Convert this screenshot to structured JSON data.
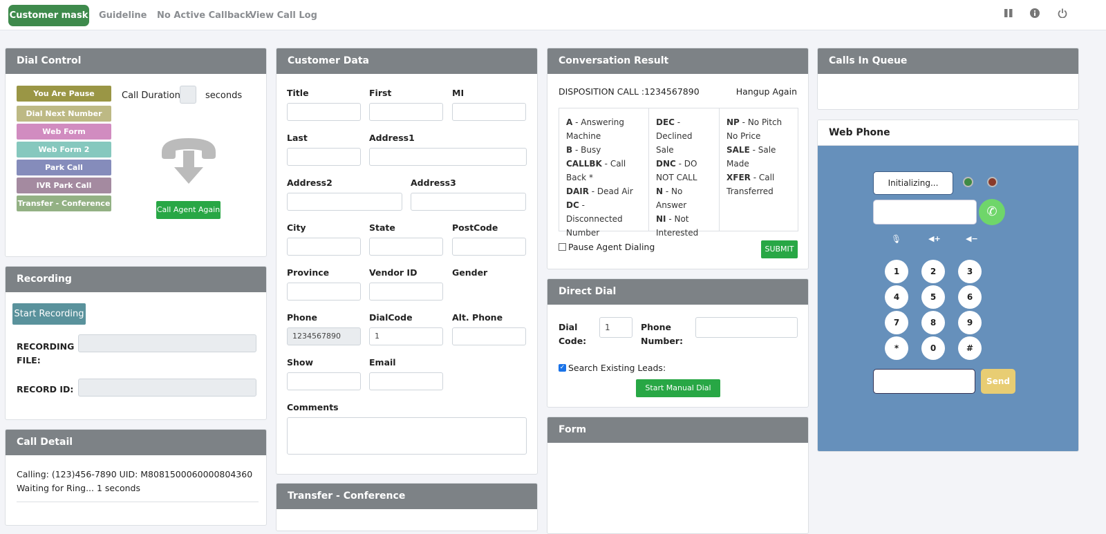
{
  "nav": {
    "items": [
      "Customer mask",
      "Guideline",
      "No Active Callback",
      "View Call Log"
    ],
    "icons": [
      "pause-icon",
      "info-icon",
      "power-icon"
    ]
  },
  "dial_control": {
    "title": "Dial Control",
    "buttons": [
      {
        "label": "You Are Pause",
        "color": "#9a9645"
      },
      {
        "label": "Dial Next Number",
        "color": "#bdb984"
      },
      {
        "label": "Web Form",
        "color": "#d18cc0"
      },
      {
        "label": "Web Form 2",
        "color": "#86c8be"
      },
      {
        "label": "Park Call",
        "color": "#858cbb"
      },
      {
        "label": "IVR Park Call",
        "color": "#a48aa0"
      },
      {
        "label": "Transfer - Conference",
        "color": "#93b184"
      }
    ],
    "call_duration_label": "Call Duration",
    "seconds_label": "seconds",
    "call_agent_again": "Call Agent Again"
  },
  "recording": {
    "title": "Recording",
    "start": "Start Recording",
    "file_label": "RECORDING FILE:",
    "id_label": "RECORD ID:"
  },
  "call_detail": {
    "title": "Call Detail",
    "text": "Calling: (123)456-7890 UID: M8081500060000804360   Waiting for Ring... 1 seconds"
  },
  "customer_data": {
    "title": "Customer Data",
    "fields": [
      {
        "label": "Title",
        "value": ""
      },
      {
        "label": "First",
        "value": ""
      },
      {
        "label": "MI",
        "value": ""
      },
      {
        "label": "Last",
        "value": ""
      },
      {
        "label": "Address1",
        "value": ""
      },
      {
        "label": "Address2",
        "value": ""
      },
      {
        "label": "Address3",
        "value": ""
      },
      {
        "label": "City",
        "value": ""
      },
      {
        "label": "State",
        "value": ""
      },
      {
        "label": "PostCode",
        "value": ""
      },
      {
        "label": "Province",
        "value": ""
      },
      {
        "label": "Vendor ID",
        "value": ""
      },
      {
        "label": "Gender",
        "value": ""
      },
      {
        "label": "Phone",
        "value": "1234567890"
      },
      {
        "label": "DialCode",
        "value": "1"
      },
      {
        "label": "Alt. Phone",
        "value": ""
      },
      {
        "label": "Show",
        "value": ""
      },
      {
        "label": "Email",
        "value": ""
      },
      {
        "label": "Comments",
        "value": ""
      }
    ]
  },
  "transfer": {
    "title": "Transfer - Conference"
  },
  "conversation": {
    "title": "Conversation Result",
    "disposition": "DISPOSITION CALL :1234567890",
    "hangup": "Hangup Again",
    "columns": [
      [
        {
          "k": "A",
          "v": "Answering Machine"
        },
        {
          "k": "B",
          "v": "Busy"
        },
        {
          "k": "CALLBK",
          "v": "Call Back *"
        },
        {
          "k": "DAIR",
          "v": "Dead Air"
        },
        {
          "k": "DC",
          "v": "Disconnected Number"
        }
      ],
      [
        {
          "k": "DEC",
          "v": "Declined Sale"
        },
        {
          "k": "DNC",
          "v": "DO NOT CALL"
        },
        {
          "k": "N",
          "v": "No Answer"
        },
        {
          "k": "NI",
          "v": "Not Interested"
        }
      ],
      [
        {
          "k": "NP",
          "v": "No Pitch No Price"
        },
        {
          "k": "SALE",
          "v": "Sale Made"
        },
        {
          "k": "XFER",
          "v": "Call Transferred"
        }
      ]
    ],
    "pause_label": "Pause Agent Dialing",
    "pause_checked": false,
    "submit": "SUBMIT"
  },
  "direct_dial": {
    "title": "Direct Dial",
    "dial_code_label": "Dial Code:",
    "dial_code": "1",
    "phone_label": "Phone Number:",
    "phone": "",
    "search_label": "Search Existing Leads:",
    "search_checked": true,
    "start": "Start Manual Dial Now"
  },
  "form": {
    "title": "Form"
  },
  "queue": {
    "title": "Calls In Queue"
  },
  "web_phone": {
    "title": "Web Phone",
    "status": "Initializing...",
    "keys": [
      "1",
      "2",
      "3",
      "4",
      "5",
      "6",
      "7",
      "8",
      "9",
      "*",
      "0",
      "#"
    ],
    "send": "Send",
    "bg": "#6690bb"
  }
}
